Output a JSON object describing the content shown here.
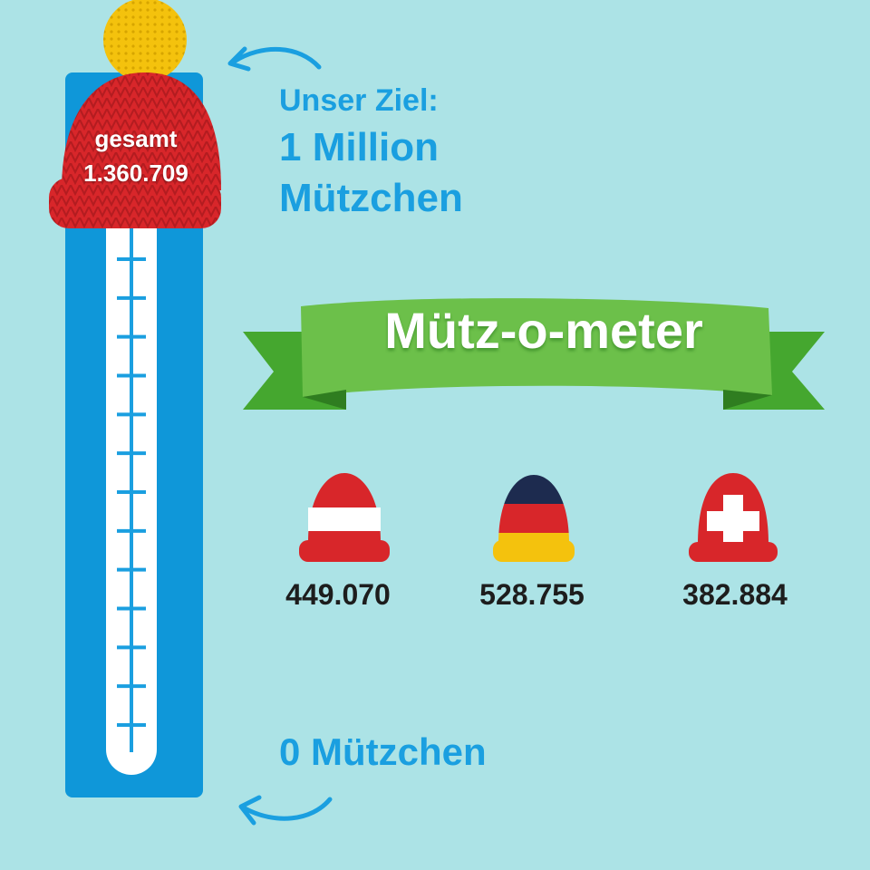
{
  "thermometer": {
    "total_label": "gesamt",
    "total_value": "1.360.709",
    "tick_count": 13
  },
  "goal": {
    "line1": "Unser Ziel:",
    "line2": "1 Million",
    "line3": "Mützchen"
  },
  "zero_label": "0 Mützchen",
  "banner": {
    "title": "Mütz-o-meter"
  },
  "countries": [
    {
      "flag": "austria",
      "count": "449.070"
    },
    {
      "flag": "germany",
      "count": "528.755"
    },
    {
      "flag": "switzerland",
      "count": "382.884"
    }
  ],
  "colors": {
    "background": "#ace3e6",
    "thermometer_blue": "#0f97d9",
    "text_blue": "#1a9fe0",
    "banner_green": "#6cc04a",
    "hat_red": "#d8262a",
    "pompom_yellow": "#f4c20d"
  }
}
